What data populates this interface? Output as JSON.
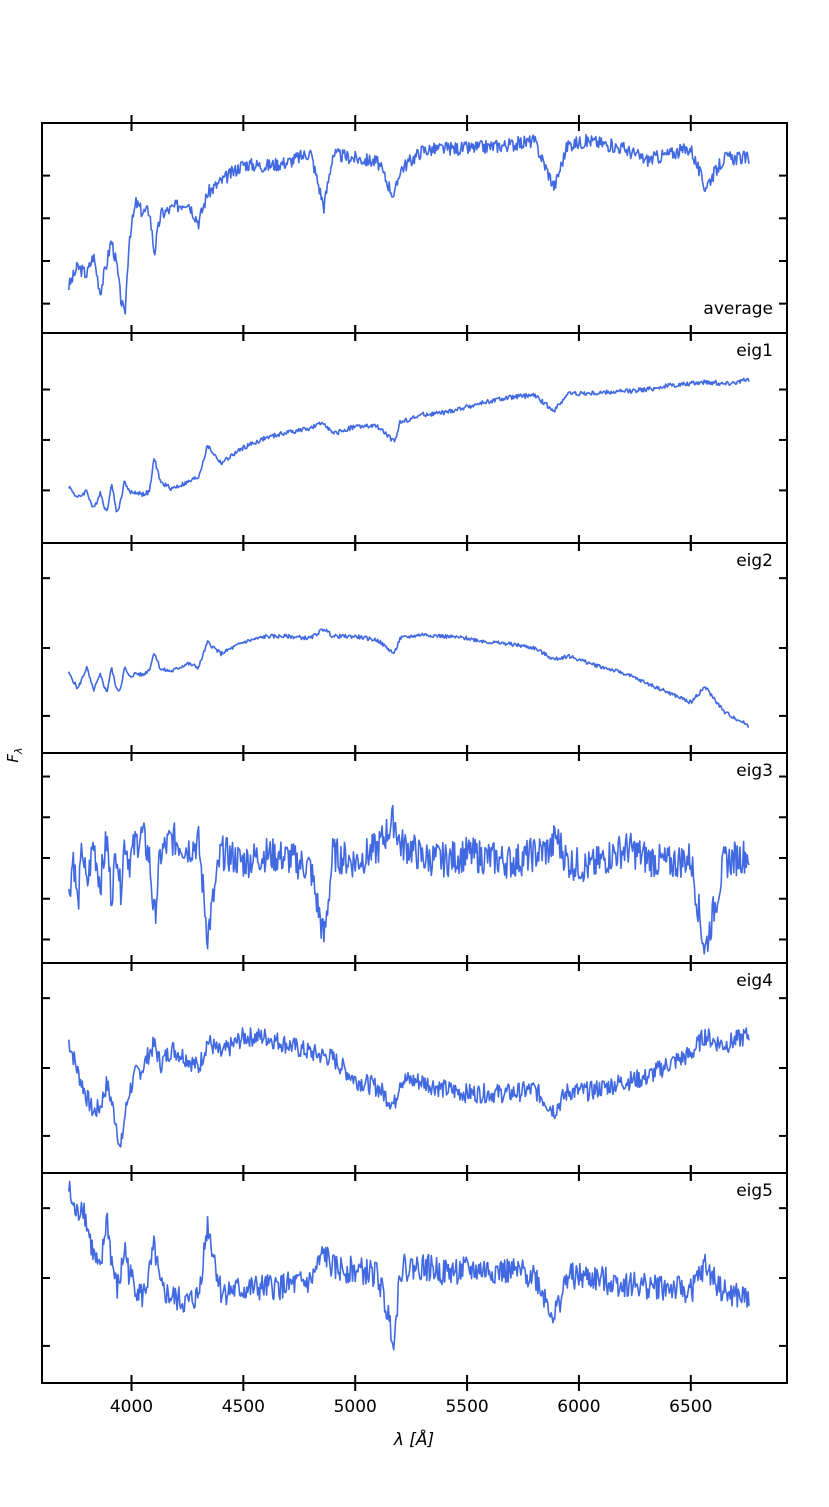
{
  "figure": {
    "ylabel": "F",
    "ylabel_sub": "λ",
    "xlabel": "λ [Å]"
  },
  "chart_data": {
    "type": "line",
    "panel_count": 6,
    "shared_x": true,
    "xlabel": "λ [Å]",
    "ylabel": "Fλ",
    "xlim": [
      3600,
      6930
    ],
    "xticks": [
      4000,
      4500,
      5000,
      5500,
      6000,
      6500
    ],
    "y_tick_labels_shown": false,
    "grid": false,
    "line_color": "#4169e1",
    "panels": [
      {
        "name": "average",
        "ylim": [
          0,
          1
        ],
        "ytick_values": [
          0.11,
          0.33,
          0.55,
          0.77
        ],
        "x": [
          3720,
          3760,
          3800,
          3830,
          3860,
          3890,
          3910,
          3935,
          3950,
          3970,
          3990,
          4020,
          4050,
          4080,
          4102,
          4130,
          4180,
          4250,
          4300,
          4340,
          4400,
          4500,
          4600,
          4700,
          4800,
          4860,
          4900,
          5000,
          5100,
          5175,
          5200,
          5300,
          5400,
          5500,
          5600,
          5700,
          5800,
          5890,
          5950,
          6050,
          6200,
          6300,
          6400,
          6500,
          6563,
          6650,
          6760
        ],
        "y": [
          0.2,
          0.3,
          0.26,
          0.36,
          0.17,
          0.32,
          0.44,
          0.3,
          0.15,
          0.04,
          0.45,
          0.63,
          0.58,
          0.59,
          0.37,
          0.57,
          0.6,
          0.64,
          0.53,
          0.68,
          0.74,
          0.83,
          0.82,
          0.84,
          0.89,
          0.61,
          0.88,
          0.86,
          0.84,
          0.66,
          0.8,
          0.9,
          0.91,
          0.91,
          0.92,
          0.93,
          0.95,
          0.71,
          0.93,
          0.95,
          0.91,
          0.85,
          0.88,
          0.91,
          0.71,
          0.86,
          0.86
        ]
      },
      {
        "name": "eig1",
        "ylim": [
          0,
          1
        ],
        "ytick_values": [
          0.23,
          0.49,
          0.75
        ],
        "x": [
          3720,
          3760,
          3800,
          3830,
          3860,
          3890,
          3910,
          3935,
          3950,
          3970,
          3990,
          4020,
          4050,
          4080,
          4102,
          4130,
          4180,
          4250,
          4300,
          4340,
          4400,
          4500,
          4600,
          4700,
          4800,
          4861,
          4900,
          5000,
          5100,
          5175,
          5200,
          5300,
          5400,
          5500,
          5600,
          5700,
          5800,
          5890,
          5950,
          6050,
          6200,
          6300,
          6400,
          6500,
          6560,
          6650,
          6760
        ],
        "y": [
          0.25,
          0.19,
          0.23,
          0.13,
          0.22,
          0.11,
          0.27,
          0.11,
          0.17,
          0.28,
          0.22,
          0.22,
          0.21,
          0.22,
          0.4,
          0.27,
          0.24,
          0.27,
          0.3,
          0.46,
          0.37,
          0.45,
          0.5,
          0.53,
          0.55,
          0.58,
          0.52,
          0.56,
          0.56,
          0.48,
          0.58,
          0.62,
          0.63,
          0.66,
          0.69,
          0.71,
          0.72,
          0.64,
          0.73,
          0.73,
          0.74,
          0.75,
          0.77,
          0.78,
          0.79,
          0.78,
          0.8
        ]
      },
      {
        "name": "eig2",
        "ylim": [
          0,
          1
        ],
        "ytick_values": [
          0.15,
          0.5,
          0.86
        ],
        "x": [
          3720,
          3760,
          3800,
          3830,
          3860,
          3890,
          3910,
          3935,
          3950,
          3970,
          3990,
          4020,
          4050,
          4080,
          4102,
          4130,
          4180,
          4250,
          4300,
          4340,
          4400,
          4500,
          4600,
          4700,
          4800,
          4861,
          4900,
          5000,
          5100,
          5175,
          5200,
          5300,
          5400,
          5500,
          5600,
          5700,
          5800,
          5890,
          5950,
          6050,
          6200,
          6300,
          6400,
          6500,
          6563,
          6650,
          6760
        ],
        "y": [
          0.37,
          0.29,
          0.4,
          0.28,
          0.36,
          0.27,
          0.4,
          0.28,
          0.29,
          0.4,
          0.35,
          0.37,
          0.36,
          0.39,
          0.48,
          0.39,
          0.38,
          0.42,
          0.4,
          0.53,
          0.47,
          0.53,
          0.56,
          0.56,
          0.55,
          0.6,
          0.56,
          0.56,
          0.54,
          0.47,
          0.55,
          0.57,
          0.56,
          0.55,
          0.53,
          0.52,
          0.5,
          0.44,
          0.46,
          0.42,
          0.37,
          0.32,
          0.27,
          0.22,
          0.3,
          0.17,
          0.1
        ]
      },
      {
        "name": "eig3",
        "ylim": [
          0,
          1
        ],
        "ytick_values": [
          0.08,
          0.29,
          0.5,
          0.71,
          0.92
        ],
        "x": [
          3720,
          3740,
          3760,
          3780,
          3800,
          3830,
          3860,
          3890,
          3910,
          3935,
          3950,
          3970,
          3990,
          4020,
          4050,
          4080,
          4102,
          4130,
          4180,
          4250,
          4300,
          4340,
          4400,
          4500,
          4600,
          4700,
          4800,
          4861,
          4900,
          5000,
          5100,
          5175,
          5200,
          5250,
          5300,
          5400,
          5500,
          5600,
          5700,
          5800,
          5880,
          5895,
          5950,
          6050,
          6150,
          6220,
          6300,
          6400,
          6500,
          6563,
          6650,
          6760
        ],
        "y": [
          0.3,
          0.52,
          0.25,
          0.56,
          0.34,
          0.58,
          0.37,
          0.6,
          0.3,
          0.57,
          0.32,
          0.6,
          0.48,
          0.58,
          0.62,
          0.5,
          0.18,
          0.52,
          0.6,
          0.55,
          0.58,
          0.1,
          0.53,
          0.48,
          0.52,
          0.5,
          0.45,
          0.08,
          0.52,
          0.48,
          0.55,
          0.7,
          0.57,
          0.55,
          0.5,
          0.49,
          0.52,
          0.5,
          0.48,
          0.52,
          0.55,
          0.62,
          0.48,
          0.45,
          0.52,
          0.55,
          0.5,
          0.47,
          0.5,
          0.02,
          0.48,
          0.52
        ]
      },
      {
        "name": "eig4",
        "ylim": [
          0,
          1
        ],
        "ytick_values": [
          0.15,
          0.5,
          0.86
        ],
        "x": [
          3720,
          3760,
          3800,
          3830,
          3860,
          3890,
          3910,
          3935,
          3950,
          3970,
          3990,
          4020,
          4050,
          4080,
          4102,
          4130,
          4180,
          4250,
          4300,
          4340,
          4400,
          4500,
          4600,
          4700,
          4800,
          4900,
          5000,
          5100,
          5175,
          5200,
          5300,
          5400,
          5500,
          5600,
          5700,
          5800,
          5890,
          5950,
          6050,
          6200,
          6300,
          6400,
          6500,
          6563,
          6600,
          6650,
          6760
        ],
        "y": [
          0.64,
          0.48,
          0.35,
          0.27,
          0.3,
          0.42,
          0.33,
          0.2,
          0.06,
          0.25,
          0.38,
          0.47,
          0.5,
          0.58,
          0.62,
          0.52,
          0.6,
          0.55,
          0.5,
          0.64,
          0.57,
          0.66,
          0.66,
          0.62,
          0.58,
          0.55,
          0.44,
          0.4,
          0.31,
          0.44,
          0.43,
          0.39,
          0.37,
          0.37,
          0.37,
          0.39,
          0.28,
          0.38,
          0.38,
          0.43,
          0.45,
          0.52,
          0.57,
          0.67,
          0.64,
          0.62,
          0.67
        ]
      },
      {
        "name": "eig5",
        "ylim": [
          0,
          1
        ],
        "ytick_values": [
          0.15,
          0.5,
          0.86
        ],
        "x": [
          3720,
          3740,
          3760,
          3780,
          3800,
          3830,
          3860,
          3890,
          3910,
          3935,
          3950,
          3970,
          3990,
          4020,
          4050,
          4080,
          4102,
          4130,
          4180,
          4250,
          4300,
          4340,
          4400,
          4500,
          4600,
          4700,
          4800,
          4861,
          4900,
          5000,
          5100,
          5175,
          5200,
          5300,
          5400,
          5500,
          5600,
          5700,
          5800,
          5890,
          5950,
          6050,
          6200,
          6300,
          6400,
          6500,
          6563,
          6650,
          6760
        ],
        "y": [
          0.96,
          0.86,
          0.82,
          0.9,
          0.78,
          0.62,
          0.52,
          0.82,
          0.6,
          0.44,
          0.5,
          0.66,
          0.52,
          0.46,
          0.4,
          0.52,
          0.66,
          0.44,
          0.4,
          0.37,
          0.41,
          0.78,
          0.43,
          0.44,
          0.45,
          0.46,
          0.48,
          0.63,
          0.55,
          0.54,
          0.52,
          0.18,
          0.55,
          0.56,
          0.53,
          0.54,
          0.54,
          0.53,
          0.52,
          0.3,
          0.51,
          0.5,
          0.47,
          0.46,
          0.45,
          0.43,
          0.56,
          0.42,
          0.39
        ]
      }
    ]
  }
}
